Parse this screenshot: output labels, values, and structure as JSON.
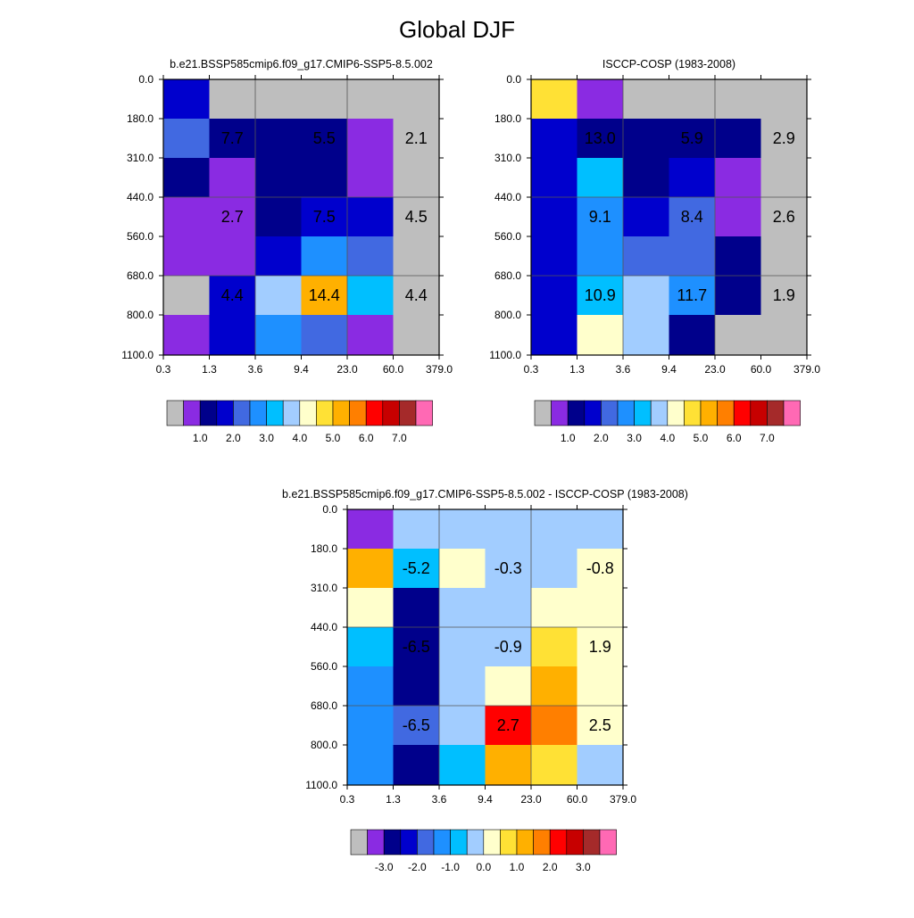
{
  "figure": {
    "title": "Global DJF"
  },
  "palettes": {
    "model": [
      "#bebebe",
      "#8a2be2",
      "#00008b",
      "#0000cd",
      "#4169e1",
      "#1e90ff",
      "#00bfff",
      "#a2cdff",
      "#ffffcc",
      "#ffe135",
      "#ffb000",
      "#ff7f00",
      "#ff0000",
      "#c70000",
      "#a52a2a",
      "#ff69b4"
    ],
    "diff": [
      "#bebebe",
      "#8a2be2",
      "#00008b",
      "#0000cd",
      "#4169e1",
      "#1e90ff",
      "#00bfff",
      "#a2cdff",
      "#ffffcc",
      "#ffe135",
      "#ffb000",
      "#ff7f00",
      "#ff0000",
      "#c70000",
      "#a52a2a",
      "#ff69b4"
    ]
  },
  "chart_data": [
    {
      "id": "model",
      "type": "heatmap",
      "title": "b.e21.BSSP585cmip6.f09_g17.CMIP6-SSP5-8.5.002",
      "x_ticks": [
        "0.3",
        "1.3",
        "3.6",
        "9.4",
        "23.0",
        "60.0",
        "379.0"
      ],
      "y_ticks": [
        "0.0",
        "180.0",
        "310.0",
        "440.0",
        "560.0",
        "680.0",
        "800.0",
        "1100.0"
      ],
      "cell_colors": [
        [
          3,
          0,
          0,
          0,
          0,
          0
        ],
        [
          4,
          2,
          2,
          2,
          1,
          0
        ],
        [
          2,
          1,
          2,
          2,
          1,
          0
        ],
        [
          1,
          1,
          2,
          3,
          3,
          0
        ],
        [
          1,
          1,
          3,
          5,
          4,
          0
        ],
        [
          0,
          3,
          7,
          10,
          6,
          0
        ],
        [
          1,
          3,
          5,
          4,
          1,
          0
        ]
      ],
      "labels": [
        {
          "text": "7.7",
          "col": 1,
          "row": 1.5
        },
        {
          "text": "5.5",
          "col": 3,
          "row": 1.5
        },
        {
          "text": "2.1",
          "col": 5,
          "row": 1.5
        },
        {
          "text": "2.7",
          "col": 1,
          "row": 3.5
        },
        {
          "text": "7.5",
          "col": 3,
          "row": 3.5
        },
        {
          "text": "4.5",
          "col": 5,
          "row": 3.5
        },
        {
          "text": "4.4",
          "col": 1,
          "row": 5.5
        },
        {
          "text": "14.4",
          "col": 3,
          "row": 5.5
        },
        {
          "text": "4.4",
          "col": 5,
          "row": 5.5
        }
      ],
      "colorbar_labels": [
        "1.0",
        "2.0",
        "3.0",
        "4.0",
        "5.0",
        "6.0",
        "7.0"
      ]
    },
    {
      "id": "obs",
      "type": "heatmap",
      "title": "ISCCP-COSP (1983-2008)",
      "x_ticks": [
        "0.3",
        "1.3",
        "3.6",
        "9.4",
        "23.0",
        "60.0",
        "379.0"
      ],
      "y_ticks": [
        "0.0",
        "180.0",
        "310.0",
        "440.0",
        "560.0",
        "680.0",
        "800.0",
        "1100.0"
      ],
      "cell_colors": [
        [
          9,
          1,
          0,
          0,
          0,
          0
        ],
        [
          3,
          2,
          2,
          2,
          2,
          0
        ],
        [
          3,
          6,
          2,
          3,
          1,
          0
        ],
        [
          3,
          5,
          3,
          4,
          1,
          0
        ],
        [
          3,
          5,
          4,
          4,
          2,
          0
        ],
        [
          3,
          6,
          7,
          5,
          2,
          0
        ],
        [
          3,
          8,
          7,
          2,
          0,
          0
        ]
      ],
      "labels": [
        {
          "text": "13.0",
          "col": 1,
          "row": 1.5
        },
        {
          "text": "5.9",
          "col": 3,
          "row": 1.5
        },
        {
          "text": "2.9",
          "col": 5,
          "row": 1.5
        },
        {
          "text": "9.1",
          "col": 1,
          "row": 3.5
        },
        {
          "text": "8.4",
          "col": 3,
          "row": 3.5
        },
        {
          "text": "2.6",
          "col": 5,
          "row": 3.5
        },
        {
          "text": "10.9",
          "col": 1,
          "row": 5.5
        },
        {
          "text": "11.7",
          "col": 3,
          "row": 5.5
        },
        {
          "text": "1.9",
          "col": 5,
          "row": 5.5
        }
      ],
      "colorbar_labels": [
        "1.0",
        "2.0",
        "3.0",
        "4.0",
        "5.0",
        "6.0",
        "7.0"
      ]
    },
    {
      "id": "diff",
      "type": "heatmap",
      "title": "b.e21.BSSP585cmip6.f09_g17.CMIP6-SSP5-8.5.002 - ISCCP-COSP (1983-2008)",
      "x_ticks": [
        "0.3",
        "1.3",
        "3.6",
        "9.4",
        "23.0",
        "60.0",
        "379.0"
      ],
      "y_ticks": [
        "0.0",
        "180.0",
        "310.0",
        "440.0",
        "560.0",
        "680.0",
        "800.0",
        "1100.0"
      ],
      "cell_colors": [
        [
          1,
          7,
          7,
          7,
          7,
          7
        ],
        [
          10,
          6,
          8,
          7,
          7,
          8
        ],
        [
          8,
          2,
          7,
          7,
          8,
          8
        ],
        [
          6,
          2,
          7,
          7,
          9,
          8
        ],
        [
          5,
          2,
          7,
          8,
          10,
          8
        ],
        [
          5,
          4,
          7,
          12,
          11,
          8
        ],
        [
          5,
          2,
          6,
          10,
          9,
          7
        ]
      ],
      "labels": [
        {
          "text": "-5.2",
          "col": 1,
          "row": 1.5
        },
        {
          "text": "-0.3",
          "col": 3,
          "row": 1.5
        },
        {
          "text": "-0.8",
          "col": 5,
          "row": 1.5
        },
        {
          "text": "-6.5",
          "col": 1,
          "row": 3.5
        },
        {
          "text": "-0.9",
          "col": 3,
          "row": 3.5
        },
        {
          "text": "1.9",
          "col": 5,
          "row": 3.5
        },
        {
          "text": "-6.5",
          "col": 1,
          "row": 5.5
        },
        {
          "text": "2.7",
          "col": 3,
          "row": 5.5
        },
        {
          "text": "2.5",
          "col": 5,
          "row": 5.5
        }
      ],
      "colorbar_labels": [
        "-3.0",
        "-2.0",
        "-1.0",
        "0.0",
        "1.0",
        "2.0",
        "3.0"
      ]
    }
  ]
}
